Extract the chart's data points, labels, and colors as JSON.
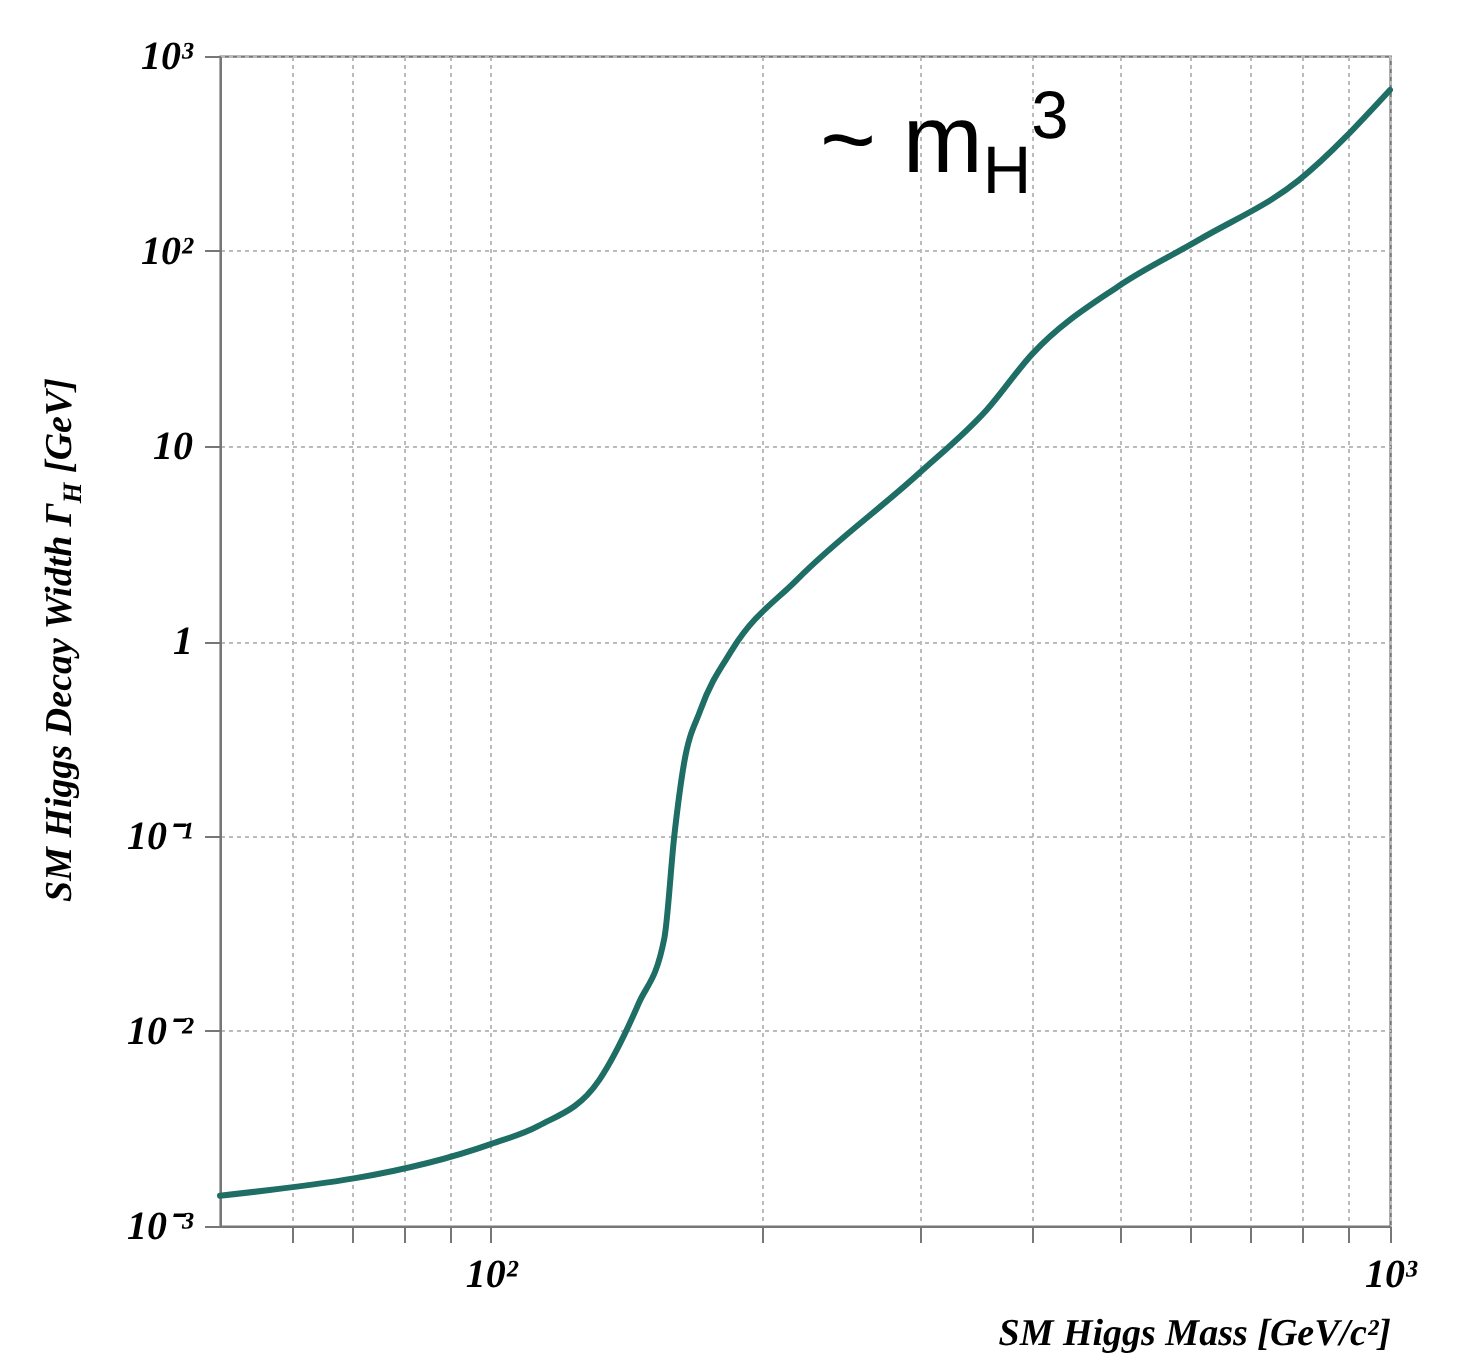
{
  "chart_data": {
    "type": "line",
    "xlabel": "SM Higgs Mass [GeV/c²]",
    "ylabel": "SM Higgs Decay Width Γ$_{H}$ [GeV]",
    "annotations": [
      "~ m$_{H}$$^{3}$"
    ],
    "x": [
      50,
      100,
      113,
      132,
      146,
      156,
      160,
      164,
      171,
      185.5,
      219,
      299,
      356,
      400,
      499,
      613,
      792,
      1000
    ],
    "series": [
      {
        "color": "#1f6e66",
        "values": [
          0.00143,
          0.00263,
          0.00326,
          0.0056,
          0.0138,
          0.03,
          0.1,
          0.234,
          0.44,
          0.9,
          2.06,
          7.2,
          15.3,
          29.6,
          66,
          114,
          231,
          670
        ]
      }
    ],
    "log": "xy",
    "xlim": [
      50,
      1000
    ],
    "ylim": [
      0.001,
      1000
    ],
    "xticks": [
      {
        "value": 60,
        "label": null
      },
      {
        "value": 70,
        "label": null
      },
      {
        "value": 80,
        "label": null
      },
      {
        "value": 90,
        "label": null
      },
      {
        "value": 100,
        "label": "10²"
      },
      {
        "value": 200,
        "label": null
      },
      {
        "value": 300,
        "label": null
      },
      {
        "value": 400,
        "label": null
      },
      {
        "value": 500,
        "label": null
      },
      {
        "value": 600,
        "label": null
      },
      {
        "value": 700,
        "label": null
      },
      {
        "value": 800,
        "label": null
      },
      {
        "value": 900,
        "label": null
      },
      {
        "value": 1000,
        "label": "10³"
      }
    ],
    "yticks": [
      {
        "value": 0.001,
        "label": "10⁻³"
      },
      {
        "value": 0.01,
        "label": "10⁻²"
      },
      {
        "value": 0.1,
        "label": "10⁻¹"
      },
      {
        "value": 1,
        "label": "1"
      },
      {
        "value": 10,
        "label": "10"
      },
      {
        "value": 100,
        "label": "10²"
      },
      {
        "value": 1000,
        "label": "10³"
      }
    ],
    "grid": true,
    "line_style": "solid"
  }
}
